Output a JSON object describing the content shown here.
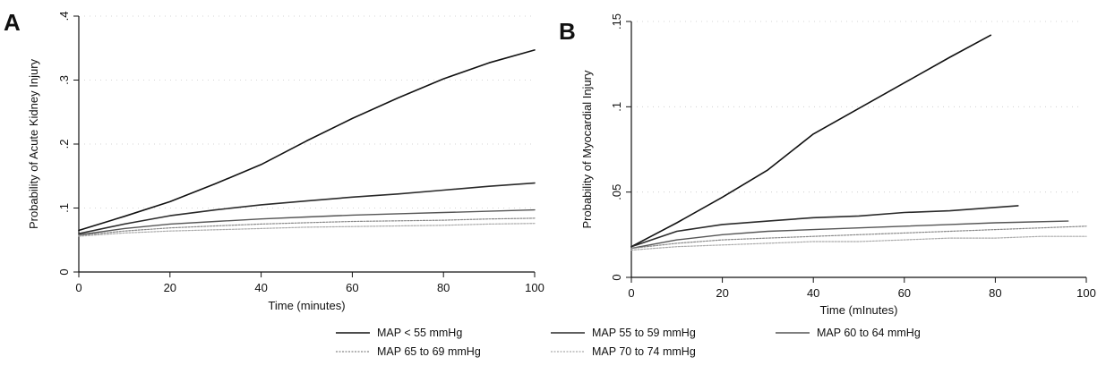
{
  "legend": [
    {
      "label": "MAP < 55 mmHg",
      "style": "solid-dark"
    },
    {
      "label": "MAP 55 to 59 mmHg",
      "style": "solid-dark"
    },
    {
      "label": "MAP 60 to 64 mmHg",
      "style": "solid-medium"
    },
    {
      "label": "MAP 65 to 69 mmHg",
      "style": "dotted-light"
    },
    {
      "label": "MAP 70 to 74 mmHg",
      "style": "dotted-light"
    }
  ],
  "chart_data": [
    {
      "type": "line",
      "panel_label": "A",
      "xlabel": "Time (minutes)",
      "ylabel": "Probability of Acute Kidney Injury",
      "xlim": [
        0,
        100
      ],
      "ylim": [
        0,
        0.4
      ],
      "xticks": [
        0,
        20,
        40,
        60,
        80,
        100
      ],
      "xtick_labels": [
        "0",
        "20",
        "40",
        "60",
        "80",
        "100"
      ],
      "yticks": [
        0,
        0.1,
        0.2,
        0.3,
        0.4
      ],
      "ytick_labels": [
        "0",
        ".1",
        ".2",
        ".3",
        ".4"
      ],
      "colors": [
        "#111111",
        "#2a2a2a",
        "#555555",
        "#888888",
        "#aaaaaa"
      ],
      "series": [
        {
          "name": "MAP < 55 mmHg",
          "x": [
            0,
            10,
            20,
            30,
            40,
            50,
            60,
            70,
            80,
            90,
            100
          ],
          "y": [
            0.065,
            0.087,
            0.11,
            0.138,
            0.168,
            0.205,
            0.24,
            0.272,
            0.302,
            0.327,
            0.347
          ]
        },
        {
          "name": "MAP 55 to 59 mmHg",
          "x": [
            0,
            10,
            20,
            30,
            40,
            50,
            60,
            70,
            80,
            90,
            100
          ],
          "y": [
            0.06,
            0.075,
            0.088,
            0.097,
            0.105,
            0.111,
            0.117,
            0.122,
            0.128,
            0.134,
            0.139
          ]
        },
        {
          "name": "MAP 60 to 64 mmHg",
          "x": [
            0,
            10,
            20,
            30,
            40,
            50,
            60,
            70,
            80,
            90,
            100
          ],
          "y": [
            0.058,
            0.068,
            0.075,
            0.079,
            0.083,
            0.086,
            0.089,
            0.091,
            0.093,
            0.095,
            0.097
          ]
        },
        {
          "name": "MAP 65 to 69 mmHg",
          "x": [
            0,
            10,
            20,
            30,
            40,
            50,
            60,
            70,
            80,
            90,
            100
          ],
          "y": [
            0.057,
            0.064,
            0.069,
            0.072,
            0.075,
            0.077,
            0.079,
            0.08,
            0.081,
            0.083,
            0.084
          ]
        },
        {
          "name": "MAP 70 to 74 mmHg",
          "x": [
            0,
            10,
            20,
            30,
            40,
            50,
            60,
            70,
            80,
            90,
            100
          ],
          "y": [
            0.056,
            0.061,
            0.064,
            0.066,
            0.068,
            0.07,
            0.071,
            0.072,
            0.073,
            0.075,
            0.076
          ]
        }
      ]
    },
    {
      "type": "line",
      "panel_label": "B",
      "xlabel": "Time (mInutes)",
      "ylabel": "Probability of Myocardial Injury",
      "xlim": [
        0,
        100
      ],
      "ylim": [
        0,
        0.15
      ],
      "xticks": [
        0,
        20,
        40,
        60,
        80,
        100
      ],
      "xtick_labels": [
        "0",
        "20",
        "40",
        "60",
        "80",
        "100"
      ],
      "yticks": [
        0,
        0.05,
        0.1,
        0.15
      ],
      "ytick_labels": [
        "0",
        ".05",
        ".1",
        ".15"
      ],
      "colors": [
        "#111111",
        "#2a2a2a",
        "#555555",
        "#888888",
        "#aaaaaa"
      ],
      "series": [
        {
          "name": "MAP < 55 mmHg",
          "x": [
            0,
            10,
            20,
            30,
            40,
            50,
            60,
            70,
            79
          ],
          "y": [
            0.018,
            0.032,
            0.047,
            0.063,
            0.084,
            0.099,
            0.114,
            0.129,
            0.142
          ]
        },
        {
          "name": "MAP 55 to 59 mmHg",
          "x": [
            0,
            10,
            20,
            30,
            40,
            50,
            60,
            70,
            85
          ],
          "y": [
            0.018,
            0.027,
            0.031,
            0.033,
            0.035,
            0.036,
            0.038,
            0.039,
            0.042
          ]
        },
        {
          "name": "MAP 60 to 64 mmHg",
          "x": [
            0,
            10,
            20,
            30,
            40,
            50,
            60,
            70,
            80,
            96
          ],
          "y": [
            0.017,
            0.022,
            0.025,
            0.027,
            0.028,
            0.029,
            0.03,
            0.031,
            0.032,
            0.033
          ]
        },
        {
          "name": "MAP 65 to 69 mmHg",
          "x": [
            0,
            10,
            20,
            30,
            40,
            50,
            60,
            70,
            80,
            90,
            100
          ],
          "y": [
            0.017,
            0.02,
            0.022,
            0.023,
            0.024,
            0.025,
            0.026,
            0.027,
            0.028,
            0.029,
            0.03
          ]
        },
        {
          "name": "MAP 70 to 74 mmHg",
          "x": [
            0,
            10,
            20,
            30,
            40,
            50,
            60,
            70,
            80,
            90,
            100
          ],
          "y": [
            0.016,
            0.018,
            0.019,
            0.02,
            0.021,
            0.021,
            0.022,
            0.023,
            0.023,
            0.024,
            0.024
          ]
        }
      ]
    }
  ]
}
